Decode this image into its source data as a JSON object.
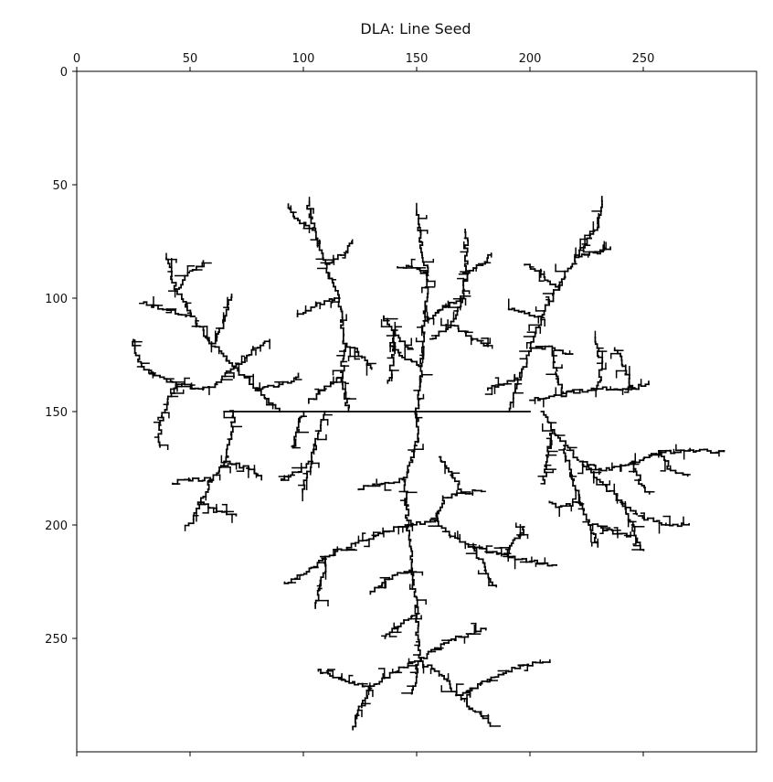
{
  "chart_data": {
    "type": "heatmap",
    "title": "DLA: Line Seed",
    "xlim": [
      0,
      300
    ],
    "ylim": [
      300,
      0
    ],
    "y_inverted": true,
    "x_axis_position": "top",
    "x_ticks": [
      0,
      50,
      100,
      150,
      200,
      250
    ],
    "y_ticks": [
      0,
      50,
      100,
      150,
      200,
      250
    ],
    "xlabel": "",
    "ylabel": "",
    "grid": false,
    "colormap": "binary",
    "colors": {
      "occupied": "#000000",
      "empty": "#ffffff"
    },
    "seed": {
      "orientation": "horizontal",
      "y": 150,
      "x_start": 65,
      "x_end": 200
    },
    "branches": [
      {
        "path": [
          [
            120,
            150
          ],
          [
            117,
            135
          ],
          [
            118,
            120
          ],
          [
            116,
            100
          ],
          [
            110,
            85
          ],
          [
            105,
            70
          ],
          [
            102,
            58
          ]
        ]
      },
      {
        "path": [
          [
            105,
            70
          ],
          [
            96,
            64
          ],
          [
            93,
            58
          ]
        ]
      },
      {
        "path": [
          [
            110,
            85
          ],
          [
            118,
            80
          ],
          [
            122,
            75
          ]
        ]
      },
      {
        "path": [
          [
            116,
            100
          ],
          [
            105,
            104
          ],
          [
            98,
            108
          ]
        ]
      },
      {
        "path": [
          [
            118,
            120
          ],
          [
            126,
            126
          ],
          [
            130,
            132
          ]
        ]
      },
      {
        "path": [
          [
            117,
            135
          ],
          [
            110,
            140
          ],
          [
            103,
            146
          ]
        ]
      },
      {
        "path": [
          [
            150,
            150
          ],
          [
            152,
            130
          ],
          [
            153,
            110
          ],
          [
            155,
            90
          ],
          [
            152,
            75
          ],
          [
            150,
            62
          ]
        ]
      },
      {
        "path": [
          [
            155,
            90
          ],
          [
            148,
            86
          ],
          [
            142,
            86
          ]
        ]
      },
      {
        "path": [
          [
            153,
            110
          ],
          [
            162,
            104
          ],
          [
            170,
            99
          ]
        ]
      },
      {
        "path": [
          [
            152,
            130
          ],
          [
            143,
            124
          ],
          [
            138,
            120
          ]
        ]
      },
      {
        "path": [
          [
            156,
            118
          ],
          [
            165,
            112
          ],
          [
            170,
            100
          ],
          [
            172,
            88
          ],
          [
            172,
            70
          ]
        ]
      },
      {
        "path": [
          [
            172,
            88
          ],
          [
            180,
            84
          ],
          [
            183,
            80
          ]
        ]
      },
      {
        "path": [
          [
            165,
            112
          ],
          [
            175,
            118
          ],
          [
            182,
            122
          ]
        ]
      },
      {
        "path": [
          [
            148,
            122
          ],
          [
            140,
            115
          ],
          [
            136,
            108
          ]
        ]
      },
      {
        "path": [
          [
            140,
            115
          ],
          [
            140,
            125
          ],
          [
            138,
            138
          ]
        ]
      },
      {
        "path": [
          [
            190,
            150
          ],
          [
            195,
            136
          ],
          [
            200,
            122
          ],
          [
            205,
            108
          ],
          [
            212,
            95
          ],
          [
            220,
            82
          ],
          [
            230,
            68
          ],
          [
            232,
            56
          ]
        ]
      },
      {
        "path": [
          [
            212,
            95
          ],
          [
            205,
            88
          ],
          [
            198,
            85
          ]
        ]
      },
      {
        "path": [
          [
            220,
            82
          ],
          [
            228,
            80
          ],
          [
            235,
            78
          ]
        ]
      },
      {
        "path": [
          [
            205,
            108
          ],
          [
            196,
            106
          ],
          [
            190,
            104
          ]
        ]
      },
      {
        "path": [
          [
            200,
            122
          ],
          [
            210,
            122
          ],
          [
            218,
            125
          ]
        ]
      },
      {
        "path": [
          [
            195,
            136
          ],
          [
            188,
            138
          ],
          [
            182,
            140
          ]
        ]
      },
      {
        "path": [
          [
            200,
            145
          ],
          [
            215,
            142
          ],
          [
            230,
            140
          ],
          [
            245,
            140
          ],
          [
            252,
            137
          ]
        ]
      },
      {
        "path": [
          [
            230,
            140
          ],
          [
            232,
            128
          ],
          [
            228,
            118
          ]
        ]
      },
      {
        "path": [
          [
            245,
            140
          ],
          [
            242,
            130
          ],
          [
            238,
            122
          ]
        ]
      },
      {
        "path": [
          [
            215,
            142
          ],
          [
            212,
            132
          ],
          [
            210,
            126
          ]
        ]
      },
      {
        "path": [
          [
            205,
            150
          ],
          [
            210,
            158
          ],
          [
            215,
            165
          ],
          [
            222,
            172
          ],
          [
            232,
            176
          ],
          [
            245,
            172
          ],
          [
            258,
            168
          ],
          [
            270,
            167
          ],
          [
            285,
            168
          ]
        ]
      },
      {
        "path": [
          [
            258,
            168
          ],
          [
            262,
            176
          ],
          [
            270,
            178
          ]
        ]
      },
      {
        "path": [
          [
            245,
            172
          ],
          [
            248,
            180
          ],
          [
            252,
            186
          ]
        ]
      },
      {
        "path": [
          [
            222,
            172
          ],
          [
            230,
            180
          ],
          [
            240,
            190
          ],
          [
            248,
            196
          ],
          [
            260,
            200
          ],
          [
            270,
            200
          ]
        ]
      },
      {
        "path": [
          [
            240,
            190
          ],
          [
            245,
            200
          ],
          [
            250,
            212
          ]
        ]
      },
      {
        "path": [
          [
            215,
            165
          ],
          [
            218,
            178
          ],
          [
            222,
            190
          ],
          [
            226,
            200
          ],
          [
            230,
            210
          ]
        ]
      },
      {
        "path": [
          [
            210,
            158
          ],
          [
            208,
            170
          ],
          [
            206,
            182
          ]
        ]
      },
      {
        "path": [
          [
            222,
            190
          ],
          [
            214,
            192
          ],
          [
            208,
            190
          ]
        ]
      },
      {
        "path": [
          [
            226,
            200
          ],
          [
            234,
            202
          ],
          [
            242,
            205
          ]
        ]
      },
      {
        "path": [
          [
            90,
            150
          ],
          [
            80,
            140
          ],
          [
            70,
            130
          ],
          [
            60,
            120
          ],
          [
            52,
            108
          ],
          [
            44,
            96
          ],
          [
            40,
            82
          ]
        ]
      },
      {
        "path": [
          [
            52,
            108
          ],
          [
            40,
            105
          ],
          [
            30,
            102
          ]
        ]
      },
      {
        "path": [
          [
            44,
            96
          ],
          [
            50,
            88
          ],
          [
            56,
            84
          ]
        ]
      },
      {
        "path": [
          [
            60,
            120
          ],
          [
            65,
            110
          ],
          [
            68,
            98
          ]
        ]
      },
      {
        "path": [
          [
            70,
            130
          ],
          [
            62,
            138
          ],
          [
            56,
            140
          ],
          [
            45,
            138
          ],
          [
            35,
            134
          ],
          [
            28,
            128
          ],
          [
            25,
            118
          ]
        ]
      },
      {
        "path": [
          [
            45,
            138
          ],
          [
            40,
            146
          ],
          [
            37,
            156
          ],
          [
            36,
            166
          ]
        ]
      },
      {
        "path": [
          [
            70,
            130
          ],
          [
            78,
            122
          ],
          [
            85,
            118
          ]
        ]
      },
      {
        "path": [
          [
            80,
            140
          ],
          [
            90,
            138
          ],
          [
            98,
            134
          ]
        ]
      },
      {
        "path": [
          [
            70,
            150
          ],
          [
            68,
            160
          ],
          [
            66,
            172
          ],
          [
            60,
            180
          ],
          [
            55,
            190
          ],
          [
            50,
            200
          ]
        ]
      },
      {
        "path": [
          [
            60,
            180
          ],
          [
            50,
            180
          ],
          [
            42,
            182
          ]
        ]
      },
      {
        "path": [
          [
            66,
            172
          ],
          [
            75,
            175
          ],
          [
            82,
            180
          ]
        ]
      },
      {
        "path": [
          [
            55,
            190
          ],
          [
            62,
            194
          ],
          [
            70,
            196
          ]
        ]
      },
      {
        "path": [
          [
            100,
            150
          ],
          [
            98,
            158
          ],
          [
            96,
            166
          ]
        ]
      },
      {
        "path": [
          [
            110,
            150
          ],
          [
            106,
            162
          ],
          [
            104,
            172
          ],
          [
            100,
            185
          ]
        ]
      },
      {
        "path": [
          [
            104,
            172
          ],
          [
            96,
            178
          ],
          [
            90,
            180
          ]
        ]
      },
      {
        "path": [
          [
            150,
            150
          ],
          [
            150,
            165
          ],
          [
            145,
            180
          ],
          [
            146,
            200
          ],
          [
            148,
            220
          ],
          [
            150,
            240
          ],
          [
            151,
            260
          ],
          [
            148,
            275
          ]
        ]
      },
      {
        "path": [
          [
            145,
            180
          ],
          [
            135,
            182
          ],
          [
            125,
            184
          ]
        ]
      },
      {
        "path": [
          [
            146,
            200
          ],
          [
            132,
            205
          ],
          [
            120,
            210
          ],
          [
            110,
            215
          ],
          [
            100,
            222
          ],
          [
            92,
            226
          ]
        ]
      },
      {
        "path": [
          [
            110,
            215
          ],
          [
            108,
            228
          ],
          [
            105,
            236
          ]
        ]
      },
      {
        "path": [
          [
            146,
            200
          ],
          [
            158,
            198
          ],
          [
            165,
            205
          ],
          [
            175,
            210
          ],
          [
            188,
            213
          ],
          [
            200,
            216
          ],
          [
            212,
            218
          ]
        ]
      },
      {
        "path": [
          [
            175,
            210
          ],
          [
            180,
            220
          ],
          [
            185,
            228
          ]
        ]
      },
      {
        "path": [
          [
            188,
            213
          ],
          [
            195,
            205
          ],
          [
            198,
            200
          ]
        ]
      },
      {
        "path": [
          [
            148,
            220
          ],
          [
            138,
            224
          ],
          [
            130,
            230
          ]
        ]
      },
      {
        "path": [
          [
            158,
            198
          ],
          [
            162,
            188
          ],
          [
            170,
            186
          ],
          [
            178,
            185
          ]
        ]
      },
      {
        "path": [
          [
            151,
            260
          ],
          [
            140,
            265
          ],
          [
            130,
            272
          ],
          [
            125,
            280
          ],
          [
            122,
            290
          ]
        ]
      },
      {
        "path": [
          [
            130,
            272
          ],
          [
            118,
            268
          ],
          [
            106,
            264
          ]
        ]
      },
      {
        "path": [
          [
            151,
            260
          ],
          [
            160,
            266
          ],
          [
            168,
            275
          ],
          [
            175,
            282
          ],
          [
            182,
            288
          ]
        ]
      },
      {
        "path": [
          [
            168,
            275
          ],
          [
            178,
            270
          ],
          [
            185,
            267
          ]
        ]
      },
      {
        "path": [
          [
            151,
            260
          ],
          [
            162,
            252
          ],
          [
            172,
            248
          ],
          [
            180,
            246
          ]
        ]
      },
      {
        "path": [
          [
            185,
            267
          ],
          [
            195,
            262
          ],
          [
            208,
            260
          ]
        ]
      },
      {
        "path": [
          [
            150,
            240
          ],
          [
            142,
            245
          ],
          [
            136,
            250
          ]
        ]
      },
      {
        "path": [
          [
            160,
            170
          ],
          [
            165,
            178
          ],
          [
            170,
            185
          ]
        ]
      }
    ]
  }
}
